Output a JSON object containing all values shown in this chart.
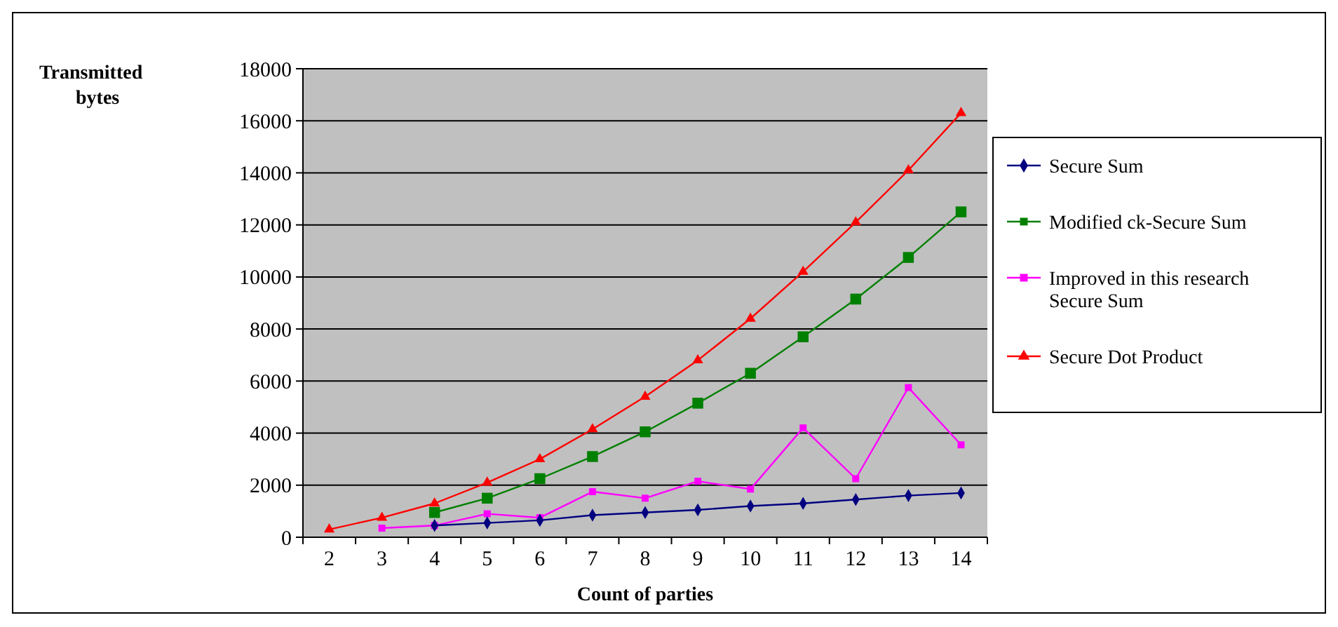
{
  "chart_data": {
    "type": "line",
    "xlabel": "Count of parties",
    "ylabel": "Transmitted bytes",
    "categories": [
      "2",
      "3",
      "4",
      "5",
      "6",
      "7",
      "8",
      "9",
      "10",
      "11",
      "12",
      "13",
      "14"
    ],
    "ylim": [
      0,
      18000
    ],
    "yticks": [
      0,
      2000,
      4000,
      6000,
      8000,
      10000,
      12000,
      14000,
      16000,
      18000
    ],
    "grid": "y",
    "legend": "right",
    "series": [
      {
        "name": "Secure Sum",
        "color": "#000080",
        "marker": "diamond",
        "values": [
          null,
          null,
          450,
          550,
          650,
          850,
          950,
          1050,
          1200,
          1300,
          1450,
          1600,
          1700
        ]
      },
      {
        "name": "Modified ck-Secure Sum",
        "color": "#008000",
        "marker": "square",
        "values": [
          null,
          null,
          950,
          1500,
          2250,
          3100,
          4050,
          5150,
          6300,
          7700,
          9150,
          10750,
          12500
        ]
      },
      {
        "name": "Improved in this research Secure Sum",
        "color": "#ff00ff",
        "marker": "square",
        "values": [
          null,
          350,
          450,
          900,
          750,
          1750,
          1500,
          2150,
          1850,
          4200,
          2250,
          5750,
          3550
        ]
      },
      {
        "name": "Secure Dot Product",
        "color": "#ff0000",
        "marker": "triangle",
        "values": [
          300,
          750,
          1300,
          2100,
          3000,
          4150,
          5400,
          6800,
          8400,
          10200,
          12100,
          14100,
          16300
        ]
      }
    ]
  }
}
